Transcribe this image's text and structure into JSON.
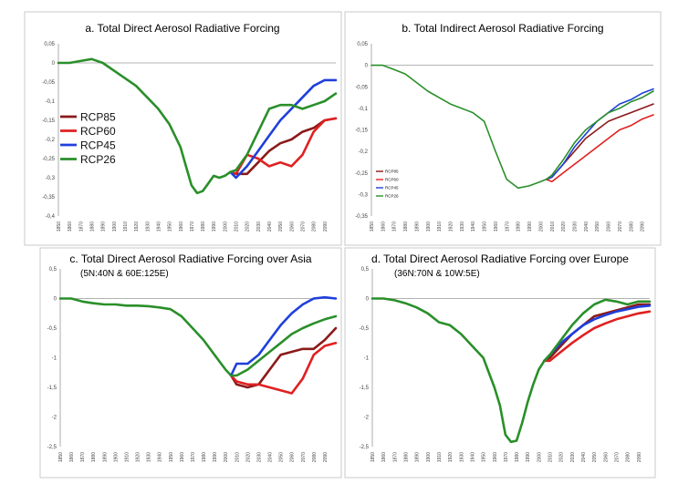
{
  "chart_data": [
    {
      "type": "line",
      "title": "a. Total Direct Aerosol Radiative Forcing",
      "subtitle": "",
      "ylim": [
        -0.4,
        0.05
      ],
      "yticks": [
        "0,05",
        "0",
        "-0,05",
        "-0,1",
        "-0,15",
        "-0,2",
        "-0,25",
        "-0,3",
        "-0,35",
        "-0,4"
      ],
      "ytick_values": [
        0.05,
        0,
        -0.05,
        -0.1,
        -0.15,
        -0.2,
        -0.25,
        -0.3,
        -0.35,
        -0.4
      ],
      "xlim": [
        1850,
        2100
      ],
      "xticks": [
        "1850",
        "1860",
        "1870",
        "1880",
        "1890",
        "1900",
        "1910",
        "1920",
        "1930",
        "1940",
        "1950",
        "1960",
        "1970",
        "1980",
        "1990",
        "2000",
        "2010",
        "2020",
        "2030",
        "2040",
        "2050",
        "2060",
        "2070",
        "2080",
        "2090"
      ],
      "legend": {
        "position": "left",
        "size": "large"
      },
      "grid": false,
      "historical": {
        "x": [
          1850,
          1860,
          1870,
          1880,
          1890,
          1900,
          1910,
          1920,
          1930,
          1940,
          1950,
          1960,
          1965,
          1970,
          1975,
          1980,
          1985,
          1990,
          1995,
          2000,
          2005
        ],
        "y": [
          0,
          0,
          0.005,
          0.01,
          0,
          -0.02,
          -0.04,
          -0.06,
          -0.09,
          -0.12,
          -0.16,
          -0.22,
          -0.27,
          -0.32,
          -0.34,
          -0.335,
          -0.315,
          -0.295,
          -0.3,
          -0.295,
          -0.285
        ]
      },
      "series": [
        {
          "name": "RCP85",
          "color": "#8b1a1a",
          "x": [
            2005,
            2010,
            2020,
            2030,
            2040,
            2050,
            2060,
            2070,
            2080,
            2090,
            2100
          ],
          "y": [
            -0.285,
            -0.29,
            -0.29,
            -0.26,
            -0.23,
            -0.21,
            -0.2,
            -0.18,
            -0.17,
            -0.15,
            -0.145
          ]
        },
        {
          "name": "RCP60",
          "color": "#e02020",
          "x": [
            2005,
            2010,
            2020,
            2030,
            2040,
            2050,
            2060,
            2070,
            2080,
            2090,
            2100
          ],
          "y": [
            -0.285,
            -0.29,
            -0.24,
            -0.25,
            -0.27,
            -0.26,
            -0.27,
            -0.24,
            -0.18,
            -0.15,
            -0.145
          ]
        },
        {
          "name": "RCP45",
          "color": "#1f3fdc",
          "x": [
            2005,
            2010,
            2020,
            2030,
            2040,
            2050,
            2060,
            2070,
            2080,
            2090,
            2100
          ],
          "y": [
            -0.285,
            -0.3,
            -0.27,
            -0.23,
            -0.19,
            -0.15,
            -0.12,
            -0.09,
            -0.06,
            -0.045,
            -0.045
          ]
        },
        {
          "name": "RCP26",
          "color": "#2a8f2a",
          "x": [
            2005,
            2010,
            2020,
            2030,
            2040,
            2050,
            2060,
            2070,
            2080,
            2090,
            2100
          ],
          "y": [
            -0.285,
            -0.28,
            -0.24,
            -0.18,
            -0.12,
            -0.11,
            -0.11,
            -0.12,
            -0.11,
            -0.1,
            -0.08
          ]
        }
      ]
    },
    {
      "type": "line",
      "title": "b. Total Indirect Aerosol Radiative Forcing",
      "subtitle": "",
      "ylim": [
        -0.35,
        0.05
      ],
      "yticks": [
        "0,05",
        "0",
        "-0,05",
        "-0,1",
        "-0,15",
        "-0,2",
        "-0,25",
        "-0,3",
        "-0,35"
      ],
      "ytick_values": [
        0.05,
        0,
        -0.05,
        -0.1,
        -0.15,
        -0.2,
        -0.25,
        -0.3,
        -0.35
      ],
      "xlim": [
        1850,
        2100
      ],
      "xticks": [
        "1850",
        "1860",
        "1870",
        "1880",
        "1890",
        "1900",
        "1910",
        "1920",
        "1930",
        "1940",
        "1950",
        "1960",
        "1970",
        "1980",
        "1990",
        "2000",
        "2010",
        "2020",
        "2030",
        "2040",
        "2050",
        "2060",
        "2070",
        "2080",
        "2090"
      ],
      "legend": {
        "position": "bottom-left",
        "size": "small"
      },
      "grid": false,
      "historical": {
        "x": [
          1850,
          1860,
          1870,
          1880,
          1890,
          1900,
          1910,
          1920,
          1930,
          1940,
          1950,
          1960,
          1970,
          1980,
          1990,
          2000,
          2005
        ],
        "y": [
          0,
          0,
          -0.01,
          -0.02,
          -0.04,
          -0.06,
          -0.075,
          -0.09,
          -0.1,
          -0.11,
          -0.13,
          -0.2,
          -0.265,
          -0.285,
          -0.28,
          -0.27,
          -0.265
        ]
      },
      "series": [
        {
          "name": "RCP85",
          "color": "#8b1a1a",
          "x": [
            2005,
            2010,
            2020,
            2030,
            2040,
            2050,
            2060,
            2070,
            2080,
            2090,
            2100
          ],
          "y": [
            -0.265,
            -0.26,
            -0.23,
            -0.2,
            -0.17,
            -0.15,
            -0.13,
            -0.12,
            -0.11,
            -0.1,
            -0.09
          ]
        },
        {
          "name": "RCP60",
          "color": "#e02020",
          "x": [
            2005,
            2010,
            2020,
            2030,
            2040,
            2050,
            2060,
            2070,
            2080,
            2090,
            2100
          ],
          "y": [
            -0.265,
            -0.27,
            -0.25,
            -0.23,
            -0.21,
            -0.19,
            -0.17,
            -0.15,
            -0.14,
            -0.125,
            -0.115
          ]
        },
        {
          "name": "RCP45",
          "color": "#1f3fdc",
          "x": [
            2005,
            2010,
            2020,
            2030,
            2040,
            2050,
            2060,
            2070,
            2080,
            2090,
            2100
          ],
          "y": [
            -0.265,
            -0.26,
            -0.23,
            -0.19,
            -0.16,
            -0.13,
            -0.11,
            -0.09,
            -0.08,
            -0.065,
            -0.055
          ]
        },
        {
          "name": "RCP26",
          "color": "#2a8f2a",
          "x": [
            2005,
            2010,
            2020,
            2030,
            2040,
            2050,
            2060,
            2070,
            2080,
            2090,
            2100
          ],
          "y": [
            -0.265,
            -0.255,
            -0.22,
            -0.18,
            -0.15,
            -0.13,
            -0.11,
            -0.1,
            -0.085,
            -0.075,
            -0.06
          ]
        }
      ]
    },
    {
      "type": "line",
      "title": "c. Total Direct Aerosol Radiative Forcing over Asia",
      "subtitle": "(5N:40N & 60E:125E)",
      "ylim": [
        -2.5,
        0.5
      ],
      "yticks": [
        "0,5",
        "0",
        "-0,5",
        "-1",
        "-1,5",
        "-2",
        "-2,5"
      ],
      "ytick_values": [
        0.5,
        0,
        -0.5,
        -1,
        -1.5,
        -2,
        -2.5
      ],
      "xlim": [
        1850,
        2100
      ],
      "xticks": [
        "1850",
        "1860",
        "1870",
        "1880",
        "1890",
        "1900",
        "1910",
        "1920",
        "1930",
        "1940",
        "1950",
        "1960",
        "1970",
        "1980",
        "1990",
        "2000",
        "2010",
        "2020",
        "2030",
        "2040",
        "2050",
        "2060",
        "2070",
        "2080",
        "2090"
      ],
      "grid": false,
      "historical": {
        "x": [
          1850,
          1860,
          1870,
          1880,
          1890,
          1900,
          1910,
          1920,
          1930,
          1940,
          1950,
          1960,
          1970,
          1980,
          1990,
          2000,
          2005
        ],
        "y": [
          0,
          0,
          -0.05,
          -0.08,
          -0.1,
          -0.1,
          -0.12,
          -0.12,
          -0.13,
          -0.15,
          -0.18,
          -0.3,
          -0.5,
          -0.7,
          -0.95,
          -1.2,
          -1.3
        ]
      },
      "series": [
        {
          "name": "RCP85",
          "color": "#8b1a1a",
          "x": [
            2005,
            2010,
            2020,
            2030,
            2040,
            2050,
            2060,
            2070,
            2080,
            2090,
            2100
          ],
          "y": [
            -1.3,
            -1.45,
            -1.5,
            -1.45,
            -1.2,
            -0.95,
            -0.9,
            -0.85,
            -0.85,
            -0.7,
            -0.5
          ]
        },
        {
          "name": "RCP60",
          "color": "#e02020",
          "x": [
            2005,
            2010,
            2020,
            2030,
            2040,
            2050,
            2060,
            2070,
            2080,
            2090,
            2100
          ],
          "y": [
            -1.3,
            -1.4,
            -1.45,
            -1.45,
            -1.5,
            -1.55,
            -1.6,
            -1.35,
            -0.95,
            -0.8,
            -0.75
          ]
        },
        {
          "name": "RCP45",
          "color": "#1f3fdc",
          "x": [
            2005,
            2010,
            2020,
            2030,
            2040,
            2050,
            2060,
            2070,
            2080,
            2090,
            2100
          ],
          "y": [
            -1.3,
            -1.1,
            -1.1,
            -0.95,
            -0.7,
            -0.45,
            -0.25,
            -0.1,
            0,
            0.02,
            0
          ]
        },
        {
          "name": "RCP26",
          "color": "#2a8f2a",
          "x": [
            2005,
            2010,
            2020,
            2030,
            2040,
            2050,
            2060,
            2070,
            2080,
            2090,
            2100
          ],
          "y": [
            -1.3,
            -1.3,
            -1.2,
            -1.05,
            -0.9,
            -0.75,
            -0.6,
            -0.5,
            -0.42,
            -0.35,
            -0.3
          ]
        }
      ]
    },
    {
      "type": "line",
      "title": "d. Total Direct Aerosol Radiative Forcing over Europe",
      "subtitle": "(36N:70N & 10W:5E)",
      "ylim": [
        -2.5,
        0.5
      ],
      "yticks": [
        "0,5",
        "0",
        "-0,5",
        "-1",
        "-1,5",
        "-2",
        "-2,5"
      ],
      "ytick_values": [
        0.5,
        0,
        -0.5,
        -1,
        -1.5,
        -2,
        -2.5
      ],
      "xlim": [
        1850,
        2100
      ],
      "xticks": [
        "1850",
        "1860",
        "1870",
        "1880",
        "1890",
        "1900",
        "1910",
        "1920",
        "1930",
        "1940",
        "1950",
        "1960",
        "1970",
        "1980",
        "1990",
        "2000",
        "2010",
        "2020",
        "2030",
        "2040",
        "2050",
        "2060",
        "2070",
        "2080",
        "2090"
      ],
      "grid": false,
      "historical": {
        "x": [
          1850,
          1860,
          1870,
          1880,
          1890,
          1900,
          1910,
          1920,
          1930,
          1940,
          1950,
          1960,
          1965,
          1970,
          1975,
          1980,
          1985,
          1990,
          1995,
          2000,
          2005
        ],
        "y": [
          0,
          0,
          -0.03,
          -0.08,
          -0.15,
          -0.25,
          -0.4,
          -0.45,
          -0.6,
          -0.8,
          -1.0,
          -1.5,
          -1.8,
          -2.3,
          -2.42,
          -2.4,
          -2.1,
          -1.75,
          -1.45,
          -1.2,
          -1.05
        ]
      },
      "series": [
        {
          "name": "RCP85",
          "color": "#8b1a1a",
          "x": [
            2005,
            2010,
            2020,
            2030,
            2040,
            2050,
            2060,
            2070,
            2080,
            2090,
            2100
          ],
          "y": [
            -1.05,
            -1.0,
            -0.8,
            -0.6,
            -0.45,
            -0.3,
            -0.25,
            -0.2,
            -0.15,
            -0.1,
            -0.1
          ]
        },
        {
          "name": "RCP60",
          "color": "#e02020",
          "x": [
            2005,
            2010,
            2020,
            2030,
            2040,
            2050,
            2060,
            2070,
            2080,
            2090,
            2100
          ],
          "y": [
            -1.05,
            -1.05,
            -0.9,
            -0.75,
            -0.62,
            -0.5,
            -0.42,
            -0.35,
            -0.3,
            -0.25,
            -0.22
          ]
        },
        {
          "name": "RCP45",
          "color": "#1f3fdc",
          "x": [
            2005,
            2010,
            2020,
            2030,
            2040,
            2050,
            2060,
            2070,
            2080,
            2090,
            2100
          ],
          "y": [
            -1.05,
            -0.95,
            -0.75,
            -0.6,
            -0.45,
            -0.35,
            -0.28,
            -0.22,
            -0.18,
            -0.14,
            -0.12
          ]
        },
        {
          "name": "RCP26",
          "color": "#2a8f2a",
          "x": [
            2005,
            2010,
            2020,
            2030,
            2040,
            2050,
            2060,
            2070,
            2080,
            2090,
            2100
          ],
          "y": [
            -1.05,
            -0.95,
            -0.7,
            -0.45,
            -0.25,
            -0.1,
            -0.02,
            -0.05,
            -0.1,
            -0.05,
            -0.05
          ]
        }
      ]
    }
  ]
}
